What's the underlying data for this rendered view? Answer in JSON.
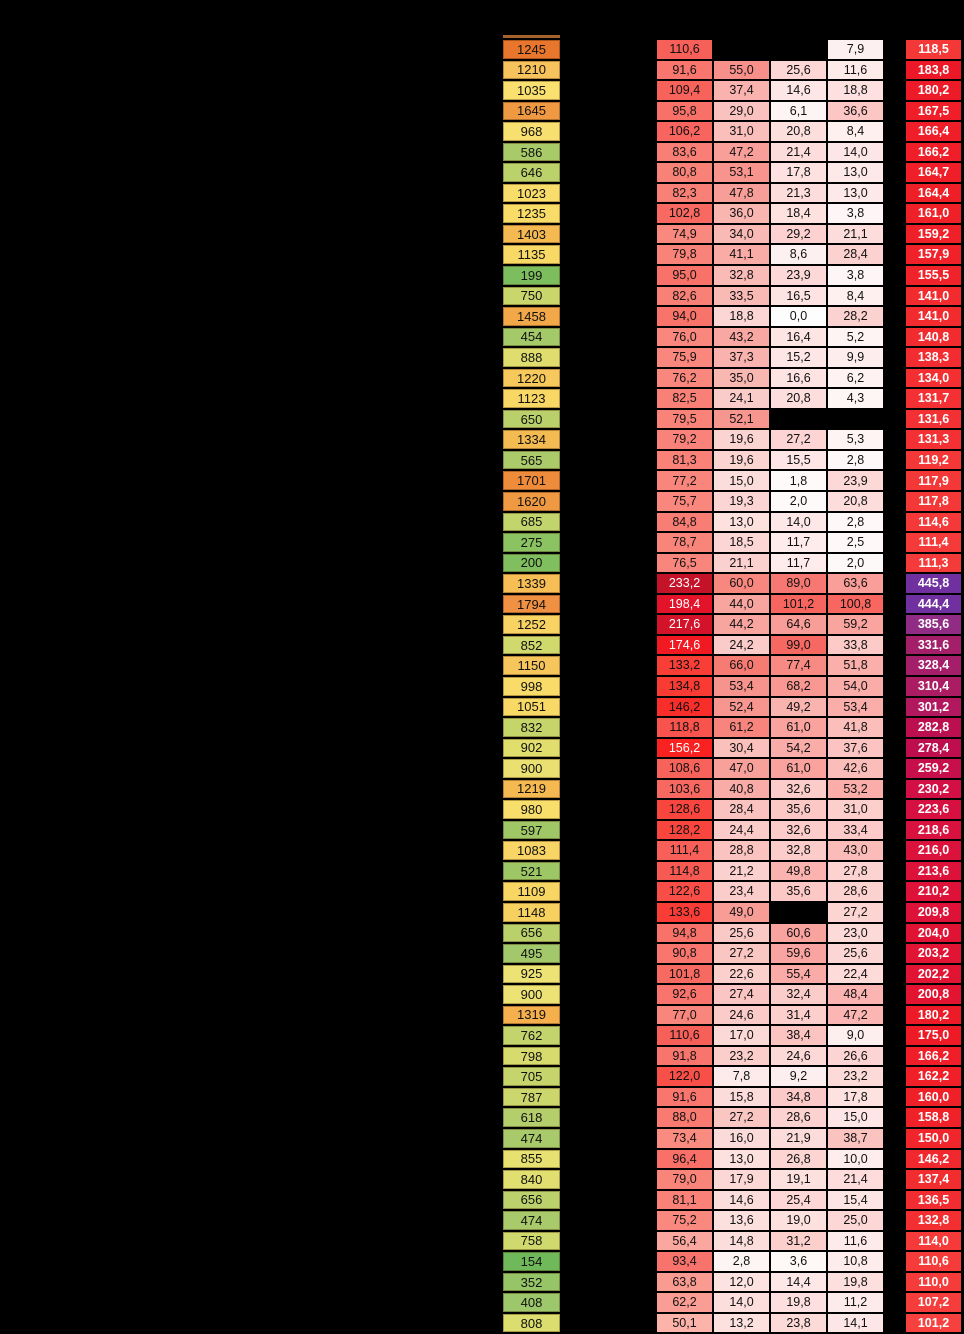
{
  "app": {
    "background_color": "#000000",
    "gridline_color": "#000000",
    "cell_text_color": "#111111",
    "total_text_color": "#FFFFFF",
    "sliver_color": "#A6622B",
    "v1_white_text_min": 150
  },
  "color_scales": {
    "v1": [
      [
        50,
        "#FBB3AA"
      ],
      [
        75,
        "#F9887E"
      ],
      [
        110,
        "#F7615A"
      ],
      [
        135,
        "#F93B34"
      ],
      [
        160,
        "#F91D1E"
      ],
      [
        200,
        "#E2142B"
      ],
      [
        234,
        "#C31329"
      ]
    ],
    "v2": [
      [
        0,
        "#FDFAFA"
      ],
      [
        66,
        "#F67B73"
      ]
    ],
    "v3": [
      [
        0,
        "#FEFDFD"
      ],
      [
        102,
        "#F6655E"
      ]
    ],
    "v4": [
      [
        0,
        "#FEFCFC"
      ],
      [
        101,
        "#F7665F"
      ]
    ],
    "total": [
      [
        101,
        "#F6413E"
      ],
      [
        160,
        "#F02028"
      ],
      [
        185,
        "#EC1827"
      ],
      [
        210,
        "#DE1238"
      ],
      [
        235,
        "#D01048"
      ],
      [
        280,
        "#BE0E4D"
      ],
      [
        310,
        "#AC1C63"
      ],
      [
        335,
        "#A31F6B"
      ],
      [
        390,
        "#8E2D86"
      ],
      [
        446,
        "#7030A0"
      ]
    ]
  },
  "table": {
    "row_count": 63,
    "columns": [
      "id",
      "v1",
      "v2",
      "v3",
      "v4",
      "total"
    ],
    "rows": [
      {
        "id": "1245",
        "id_color": "#E8762C",
        "cells": [
          "110,6",
          null,
          null,
          "7,9",
          "118,5"
        ]
      },
      {
        "id": "1210",
        "id_color": "#F7C35C",
        "cells": [
          "91,6",
          "55,0",
          "25,6",
          "11,6",
          "183,8"
        ]
      },
      {
        "id": "1035",
        "id_color": "#FAE06E",
        "cells": [
          "109,4",
          "37,4",
          "14,6",
          "18,8",
          "180,2"
        ]
      },
      {
        "id": "1645",
        "id_color": "#EF9A43",
        "cells": [
          "95,8",
          "29,0",
          "6,1",
          "36,6",
          "167,5"
        ]
      },
      {
        "id": "968",
        "id_color": "#F7E06F",
        "cells": [
          "106,2",
          "31,0",
          "20,8",
          "8,4",
          "166,4"
        ]
      },
      {
        "id": "586",
        "id_color": "#A8CA68",
        "cells": [
          "83,6",
          "47,2",
          "21,4",
          "14,0",
          "166,2"
        ]
      },
      {
        "id": "646",
        "id_color": "#BBD169",
        "cells": [
          "80,8",
          "53,1",
          "17,8",
          "13,0",
          "164,7"
        ]
      },
      {
        "id": "1023",
        "id_color": "#F8DD6B",
        "cells": [
          "82,3",
          "47,8",
          "21,3",
          "13,0",
          "164,4"
        ]
      },
      {
        "id": "1235",
        "id_color": "#F9DC67",
        "cells": [
          "102,8",
          "36,0",
          "18,4",
          "3,8",
          "161,0"
        ]
      },
      {
        "id": "1403",
        "id_color": "#F5B951",
        "cells": [
          "74,9",
          "34,0",
          "29,2",
          "21,1",
          "159,2"
        ]
      },
      {
        "id": "1135",
        "id_color": "#F8D965",
        "cells": [
          "79,8",
          "41,1",
          "8,6",
          "28,4",
          "157,9"
        ]
      },
      {
        "id": "199",
        "id_color": "#7CBE5D",
        "cells": [
          "95,0",
          "32,8",
          "23,9",
          "3,8",
          "155,5"
        ]
      },
      {
        "id": "750",
        "id_color": "#C9D66B",
        "cells": [
          "82,6",
          "33,5",
          "16,5",
          "8,4",
          "141,0"
        ]
      },
      {
        "id": "1458",
        "id_color": "#F2A748",
        "cells": [
          "94,0",
          "18,8",
          "0,0",
          "28,2",
          "141,0"
        ]
      },
      {
        "id": "454",
        "id_color": "#A4C968",
        "cells": [
          "76,0",
          "43,2",
          "16,4",
          "5,2",
          "140,8"
        ]
      },
      {
        "id": "888",
        "id_color": "#DFDD6E",
        "cells": [
          "75,9",
          "37,3",
          "15,2",
          "9,9",
          "138,3"
        ]
      },
      {
        "id": "1220",
        "id_color": "#F7C95C",
        "cells": [
          "76,2",
          "35,0",
          "16,6",
          "6,2",
          "134,0"
        ]
      },
      {
        "id": "1123",
        "id_color": "#F9D765",
        "cells": [
          "82,5",
          "24,1",
          "20,8",
          "4,3",
          "131,7"
        ]
      },
      {
        "id": "650",
        "id_color": "#BAD06B",
        "cells": [
          "79,5",
          "52,1",
          null,
          null,
          "131,6"
        ]
      },
      {
        "id": "1334",
        "id_color": "#F5BB53",
        "cells": [
          "79,2",
          "19,6",
          "27,2",
          "5,3",
          "131,3"
        ]
      },
      {
        "id": "565",
        "id_color": "#ABCB6B",
        "cells": [
          "81,3",
          "19,6",
          "15,5",
          "2,8",
          "119,2"
        ]
      },
      {
        "id": "1701",
        "id_color": "#EE8C3C",
        "cells": [
          "77,2",
          "15,0",
          "1,8",
          "23,9",
          "117,9"
        ]
      },
      {
        "id": "1620",
        "id_color": "#EF9A43",
        "cells": [
          "75,7",
          "19,3",
          "2,0",
          "20,8",
          "117,8"
        ]
      },
      {
        "id": "685",
        "id_color": "#C2D46C",
        "cells": [
          "84,8",
          "13,0",
          "14,0",
          "2,8",
          "114,6"
        ]
      },
      {
        "id": "275",
        "id_color": "#8BC262",
        "cells": [
          "78,7",
          "18,5",
          "11,7",
          "2,5",
          "111,4"
        ]
      },
      {
        "id": "200",
        "id_color": "#80BF5F",
        "cells": [
          "76,5",
          "21,1",
          "11,7",
          "2,0",
          "111,3"
        ]
      },
      {
        "id": "1339",
        "id_color": "#F6BE55",
        "cells": [
          "233,2",
          "60,0",
          "89,0",
          "63,6",
          "445,8"
        ]
      },
      {
        "id": "1794",
        "id_color": "#EF9042",
        "cells": [
          "198,4",
          "44,0",
          "101,2",
          "100,8",
          "444,4"
        ]
      },
      {
        "id": "1252",
        "id_color": "#F8D263",
        "cells": [
          "217,6",
          "44,2",
          "64,6",
          "59,2",
          "385,6"
        ]
      },
      {
        "id": "852",
        "id_color": "#CFD96C",
        "cells": [
          "174,6",
          "24,2",
          "99,0",
          "33,8",
          "331,6"
        ]
      },
      {
        "id": "1150",
        "id_color": "#F6C55B",
        "cells": [
          "133,2",
          "66,0",
          "77,4",
          "51,8",
          "328,4"
        ]
      },
      {
        "id": "998",
        "id_color": "#F8DB68",
        "cells": [
          "134,8",
          "53,4",
          "68,2",
          "54,0",
          "310,4"
        ]
      },
      {
        "id": "1051",
        "id_color": "#F8D966",
        "cells": [
          "146,2",
          "52,4",
          "49,2",
          "53,4",
          "301,2"
        ]
      },
      {
        "id": "832",
        "id_color": "#C5D56A",
        "cells": [
          "118,8",
          "61,2",
          "61,0",
          "41,8",
          "282,8"
        ]
      },
      {
        "id": "902",
        "id_color": "#E1DE6E",
        "cells": [
          "156,2",
          "30,4",
          "54,2",
          "37,6",
          "278,4"
        ]
      },
      {
        "id": "900",
        "id_color": "#E9E071",
        "cells": [
          "108,6",
          "47,0",
          "61,0",
          "42,6",
          "259,2"
        ]
      },
      {
        "id": "1219",
        "id_color": "#F4B950",
        "cells": [
          "103,6",
          "40,8",
          "32,6",
          "53,2",
          "230,2"
        ]
      },
      {
        "id": "980",
        "id_color": "#F8DF6B",
        "cells": [
          "128,6",
          "28,4",
          "35,6",
          "31,0",
          "223,6"
        ]
      },
      {
        "id": "597",
        "id_color": "#A0C766",
        "cells": [
          "128,2",
          "24,4",
          "32,6",
          "33,4",
          "218,6"
        ]
      },
      {
        "id": "1083",
        "id_color": "#F8D564",
        "cells": [
          "111,4",
          "28,8",
          "32,8",
          "43,0",
          "216,0"
        ]
      },
      {
        "id": "521",
        "id_color": "#9DC665",
        "cells": [
          "114,8",
          "21,2",
          "49,8",
          "27,8",
          "213,6"
        ]
      },
      {
        "id": "1109",
        "id_color": "#F8D664",
        "cells": [
          "122,6",
          "23,4",
          "35,6",
          "28,6",
          "210,2"
        ]
      },
      {
        "id": "1148",
        "id_color": "#F7D160",
        "cells": [
          "133,6",
          "49,0",
          null,
          "27,2",
          "209,8"
        ]
      },
      {
        "id": "656",
        "id_color": "#BAD06A",
        "cells": [
          "94,8",
          "25,6",
          "60,6",
          "23,0",
          "204,0"
        ]
      },
      {
        "id": "495",
        "id_color": "#A2C86B",
        "cells": [
          "90,8",
          "27,2",
          "59,6",
          "25,6",
          "203,2"
        ]
      },
      {
        "id": "925",
        "id_color": "#EDE374",
        "cells": [
          "101,8",
          "22,6",
          "55,4",
          "22,4",
          "202,2"
        ]
      },
      {
        "id": "900",
        "id_color": "#EDE375",
        "cells": [
          "92,6",
          "27,4",
          "32,4",
          "48,4",
          "200,8"
        ]
      },
      {
        "id": "1319",
        "id_color": "#F5AF4D",
        "cells": [
          "77,0",
          "24,6",
          "31,4",
          "47,2",
          "180,2"
        ]
      },
      {
        "id": "762",
        "id_color": "#C3D46C",
        "cells": [
          "110,6",
          "17,0",
          "38,4",
          "9,0",
          "175,0"
        ]
      },
      {
        "id": "798",
        "id_color": "#D7DB6D",
        "cells": [
          "91,8",
          "23,2",
          "24,6",
          "26,6",
          "166,2"
        ]
      },
      {
        "id": "705",
        "id_color": "#C5D56C",
        "cells": [
          "122,0",
          "7,8",
          "9,2",
          "23,2",
          "162,2"
        ]
      },
      {
        "id": "787",
        "id_color": "#CBD76C",
        "cells": [
          "91,6",
          "15,8",
          "34,8",
          "17,8",
          "160,0"
        ]
      },
      {
        "id": "618",
        "id_color": "#B3CE6A",
        "cells": [
          "88,0",
          "27,2",
          "28,6",
          "15,0",
          "158,8"
        ]
      },
      {
        "id": "474",
        "id_color": "#A9CA6B",
        "cells": [
          "73,4",
          "16,0",
          "21,9",
          "38,7",
          "150,0"
        ]
      },
      {
        "id": "855",
        "id_color": "#E7E171",
        "cells": [
          "96,4",
          "13,0",
          "26,8",
          "10,0",
          "146,2"
        ]
      },
      {
        "id": "840",
        "id_color": "#E0DF70",
        "cells": [
          "79,0",
          "17,9",
          "19,1",
          "21,4",
          "137,4"
        ]
      },
      {
        "id": "656",
        "id_color": "#BCD16C",
        "cells": [
          "81,1",
          "14,6",
          "25,4",
          "15,4",
          "136,5"
        ]
      },
      {
        "id": "474",
        "id_color": "#A9CA6B",
        "cells": [
          "75,2",
          "13,6",
          "19,0",
          "25,0",
          "132,8"
        ]
      },
      {
        "id": "758",
        "id_color": "#CFD96D",
        "cells": [
          "56,4",
          "14,8",
          "31,2",
          "11,6",
          "114,0"
        ]
      },
      {
        "id": "154",
        "id_color": "#6FB95A",
        "cells": [
          "93,4",
          "2,8",
          "3,6",
          "10,8",
          "110,6"
        ]
      },
      {
        "id": "352",
        "id_color": "#95C566",
        "cells": [
          "63,8",
          "12,0",
          "14,4",
          "19,8",
          "110,0"
        ]
      },
      {
        "id": "408",
        "id_color": "#9CC76A",
        "cells": [
          "62,2",
          "14,0",
          "19,8",
          "11,2",
          "107,2"
        ]
      },
      {
        "id": "808",
        "id_color": "#DCDD6F",
        "cells": [
          "50,1",
          "13,2",
          "23,8",
          "14,1",
          "101,2"
        ]
      }
    ]
  }
}
